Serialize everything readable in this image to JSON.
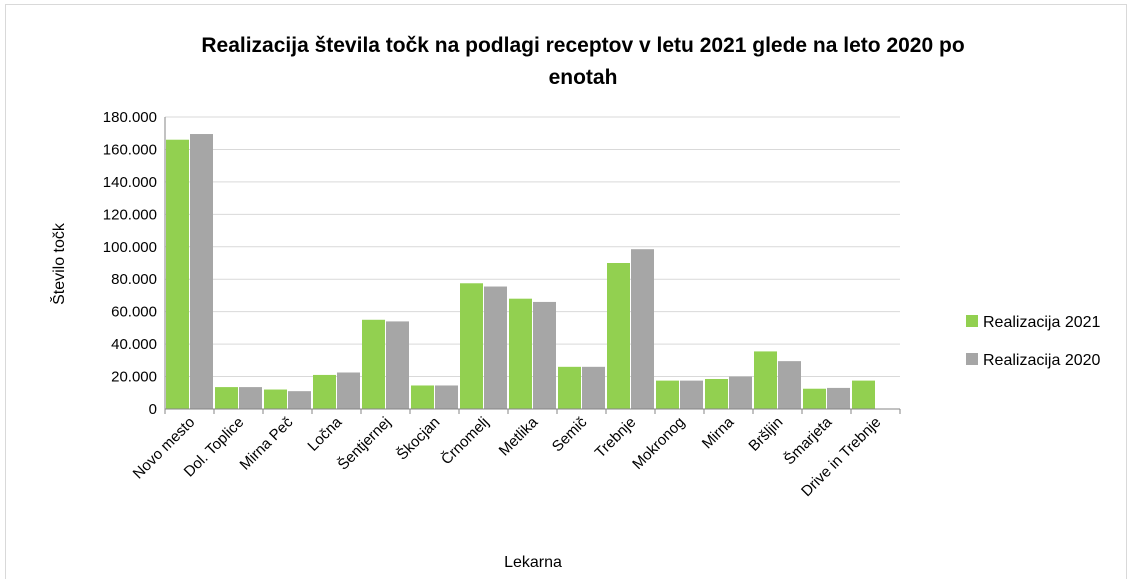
{
  "chart_data": {
    "type": "bar",
    "title_line1": "Realizacija števila točk na podlagi receptov v letu 2021 glede na leto 2020 po",
    "title_line2": "enotah",
    "xlabel": "Lekarna",
    "ylabel": "Število točk",
    "ylim": [
      0,
      180000
    ],
    "yticks": [
      "0",
      "20.000",
      "40.000",
      "60.000",
      "80.000",
      "100.000",
      "120.000",
      "140.000",
      "160.000",
      "180.000"
    ],
    "grid": true,
    "legend_position": "right",
    "categories": [
      "Novo mesto",
      "Dol. Toplice",
      "Mirna Peč",
      "Ločna",
      "Šentjernej",
      "Škocjan",
      "Črnomelj",
      "Metlika",
      "Semič",
      "Trebnje",
      "Mokronog",
      "Mirna",
      "Bršljin",
      "Šmarjeta",
      "Drive in Trebnje"
    ],
    "series": [
      {
        "name": "Realizacija 2021",
        "color": "#92d050",
        "values": [
          166000,
          13500,
          12000,
          21000,
          55000,
          14500,
          77500,
          68000,
          26000,
          90000,
          17500,
          18500,
          35500,
          12500,
          17500
        ]
      },
      {
        "name": "Realizacija 2020",
        "color": "#a6a6a6",
        "values": [
          169500,
          13500,
          11000,
          22500,
          54000,
          14500,
          75500,
          66000,
          26000,
          98500,
          17500,
          20000,
          29500,
          13000,
          null
        ]
      }
    ]
  }
}
